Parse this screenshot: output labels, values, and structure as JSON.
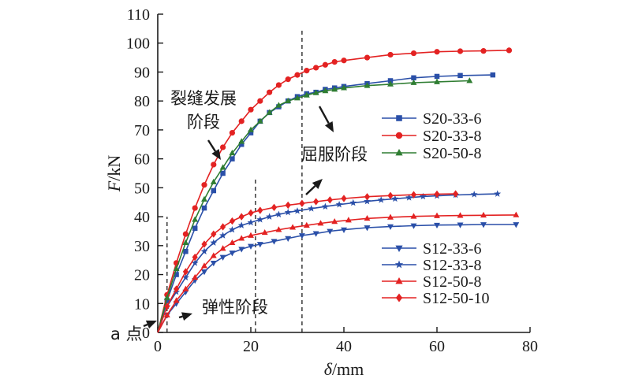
{
  "chart_data": {
    "type": "line",
    "xlabel_symbol": "δ",
    "xlabel_unit": "/mm",
    "ylabel_symbol": "F",
    "ylabel_unit": "/kN",
    "xlim": [
      0,
      80
    ],
    "ylim": [
      0,
      110
    ],
    "xticks": [
      0,
      20,
      40,
      60,
      80
    ],
    "yticks": [
      0,
      10,
      20,
      30,
      40,
      50,
      60,
      70,
      80,
      90,
      100,
      110
    ],
    "grid": false,
    "legend_groups": [
      {
        "placement": "upper-right",
        "series": [
          "S20-33-6",
          "S20-33-8",
          "S20-50-8"
        ]
      },
      {
        "placement": "lower-right",
        "series": [
          "S12-33-6",
          "S12-33-8",
          "S12-50-8",
          "S12-50-10"
        ]
      }
    ],
    "series": [
      {
        "name": "S20-33-6",
        "color": "#2a4fa8",
        "marker": "square",
        "points": [
          [
            0,
            0
          ],
          [
            2,
            11
          ],
          [
            4,
            20
          ],
          [
            6,
            28
          ],
          [
            8,
            36
          ],
          [
            10,
            43
          ],
          [
            12,
            49
          ],
          [
            14,
            55
          ],
          [
            16,
            60
          ],
          [
            18,
            65
          ],
          [
            20,
            69
          ],
          [
            22,
            73
          ],
          [
            24,
            76
          ],
          [
            26,
            78
          ],
          [
            28,
            80
          ],
          [
            30,
            81.5
          ],
          [
            32,
            82.5
          ],
          [
            34,
            83
          ],
          [
            36,
            84
          ],
          [
            38,
            84.5
          ],
          [
            40,
            85
          ],
          [
            45,
            86
          ],
          [
            50,
            87
          ],
          [
            55,
            88
          ],
          [
            60,
            88.5
          ],
          [
            65,
            88.8
          ],
          [
            72,
            89
          ]
        ]
      },
      {
        "name": "S20-33-8",
        "color": "#e32222",
        "marker": "circle",
        "points": [
          [
            0,
            0
          ],
          [
            2,
            13
          ],
          [
            4,
            24
          ],
          [
            6,
            34
          ],
          [
            8,
            43
          ],
          [
            10,
            51
          ],
          [
            12,
            58
          ],
          [
            14,
            64
          ],
          [
            16,
            69
          ],
          [
            18,
            73
          ],
          [
            20,
            77
          ],
          [
            22,
            80
          ],
          [
            24,
            83
          ],
          [
            26,
            85.5
          ],
          [
            28,
            87.5
          ],
          [
            30,
            89
          ],
          [
            32,
            90.5
          ],
          [
            34,
            91.5
          ],
          [
            36,
            92.5
          ],
          [
            38,
            93.5
          ],
          [
            40,
            94
          ],
          [
            45,
            95
          ],
          [
            50,
            96
          ],
          [
            55,
            96.5
          ],
          [
            60,
            97
          ],
          [
            65,
            97.2
          ],
          [
            70,
            97.3
          ],
          [
            75.5,
            97.5
          ]
        ]
      },
      {
        "name": "S20-50-8",
        "color": "#2f7d32",
        "marker": "triangle-up",
        "points": [
          [
            0,
            0
          ],
          [
            2,
            12
          ],
          [
            4,
            22
          ],
          [
            6,
            31
          ],
          [
            8,
            39
          ],
          [
            10,
            46
          ],
          [
            12,
            52
          ],
          [
            14,
            57
          ],
          [
            16,
            62
          ],
          [
            18,
            66
          ],
          [
            20,
            70
          ],
          [
            22,
            73
          ],
          [
            24,
            76
          ],
          [
            26,
            78.5
          ],
          [
            28,
            80
          ],
          [
            30,
            81
          ],
          [
            32,
            82
          ],
          [
            34,
            82.8
          ],
          [
            36,
            83.5
          ],
          [
            38,
            84
          ],
          [
            40,
            84.5
          ],
          [
            45,
            85.3
          ],
          [
            50,
            85.8
          ],
          [
            55,
            86.3
          ],
          [
            60,
            86.6
          ],
          [
            67,
            87
          ]
        ]
      },
      {
        "name": "S12-33-6",
        "color": "#2a4fa8",
        "marker": "triangle-down",
        "points": [
          [
            0,
            0
          ],
          [
            2,
            6
          ],
          [
            4,
            10
          ],
          [
            6,
            14
          ],
          [
            8,
            18
          ],
          [
            10,
            21
          ],
          [
            12,
            24
          ],
          [
            14,
            26
          ],
          [
            16,
            27.5
          ],
          [
            18,
            28.8
          ],
          [
            20,
            29.8
          ],
          [
            22,
            30.5
          ],
          [
            25,
            31.5
          ],
          [
            28,
            32.5
          ],
          [
            31,
            33.5
          ],
          [
            34,
            34.2
          ],
          [
            37,
            35
          ],
          [
            40,
            35.5
          ],
          [
            45,
            36.2
          ],
          [
            50,
            36.6
          ],
          [
            55,
            36.9
          ],
          [
            60,
            37.1
          ],
          [
            65,
            37.2
          ],
          [
            70,
            37.3
          ],
          [
            77,
            37.3
          ]
        ]
      },
      {
        "name": "S12-33-8",
        "color": "#2a4fa8",
        "marker": "star",
        "points": [
          [
            0,
            0
          ],
          [
            2,
            9
          ],
          [
            4,
            14
          ],
          [
            6,
            19
          ],
          [
            8,
            24
          ],
          [
            10,
            28
          ],
          [
            12,
            31
          ],
          [
            14,
            33.5
          ],
          [
            16,
            35.5
          ],
          [
            18,
            37
          ],
          [
            20,
            38
          ],
          [
            22,
            39
          ],
          [
            24,
            40
          ],
          [
            26,
            40.8
          ],
          [
            28,
            41.5
          ],
          [
            30,
            42
          ],
          [
            33,
            42.8
          ],
          [
            36,
            43.5
          ],
          [
            39,
            44.2
          ],
          [
            42,
            44.8
          ],
          [
            45,
            45.3
          ],
          [
            48,
            45.8
          ],
          [
            51,
            46.2
          ],
          [
            54,
            46.6
          ],
          [
            57,
            47
          ],
          [
            60,
            47.2
          ],
          [
            64,
            47.5
          ],
          [
            68,
            47.7
          ],
          [
            73,
            47.9
          ]
        ]
      },
      {
        "name": "S12-50-8",
        "color": "#e32222",
        "marker": "triangle-up",
        "points": [
          [
            0,
            0
          ],
          [
            2,
            6
          ],
          [
            4,
            11
          ],
          [
            6,
            15
          ],
          [
            8,
            19
          ],
          [
            10,
            23
          ],
          [
            12,
            26.5
          ],
          [
            14,
            29
          ],
          [
            16,
            31
          ],
          [
            18,
            32.5
          ],
          [
            20,
            33.5
          ],
          [
            23,
            34.5
          ],
          [
            26,
            35.5
          ],
          [
            29,
            36.3
          ],
          [
            32,
            37
          ],
          [
            35,
            37.7
          ],
          [
            38,
            38.3
          ],
          [
            41,
            38.8
          ],
          [
            45,
            39.4
          ],
          [
            50,
            39.8
          ],
          [
            55,
            40.1
          ],
          [
            60,
            40.3
          ],
          [
            65,
            40.4
          ],
          [
            70,
            40.5
          ],
          [
            77,
            40.6
          ]
        ]
      },
      {
        "name": "S12-50-10",
        "color": "#e32222",
        "marker": "diamond",
        "points": [
          [
            0,
            0
          ],
          [
            2,
            9
          ],
          [
            4,
            15
          ],
          [
            6,
            21
          ],
          [
            8,
            26
          ],
          [
            10,
            30.5
          ],
          [
            12,
            34
          ],
          [
            14,
            36.5
          ],
          [
            16,
            38.5
          ],
          [
            18,
            40
          ],
          [
            20,
            41.3
          ],
          [
            22,
            42.2
          ],
          [
            25,
            43.2
          ],
          [
            28,
            44
          ],
          [
            31,
            44.6
          ],
          [
            34,
            45.2
          ],
          [
            37,
            45.8
          ],
          [
            40,
            46.3
          ],
          [
            45,
            46.9
          ],
          [
            50,
            47.3
          ],
          [
            55,
            47.6
          ],
          [
            60,
            47.8
          ],
          [
            64,
            47.9
          ]
        ]
      }
    ],
    "annotations": [
      {
        "id": "crack-stage",
        "lines": [
          "裂缝发展",
          "阶段"
        ]
      },
      {
        "id": "yield-stage",
        "lines": [
          "屈服阶段"
        ]
      },
      {
        "id": "elastic-stage",
        "lines": [
          "弹性阶段"
        ]
      },
      {
        "id": "point-a",
        "lines": [
          "a 点"
        ]
      }
    ],
    "divider_lines_x": [
      2,
      21,
      31
    ]
  }
}
